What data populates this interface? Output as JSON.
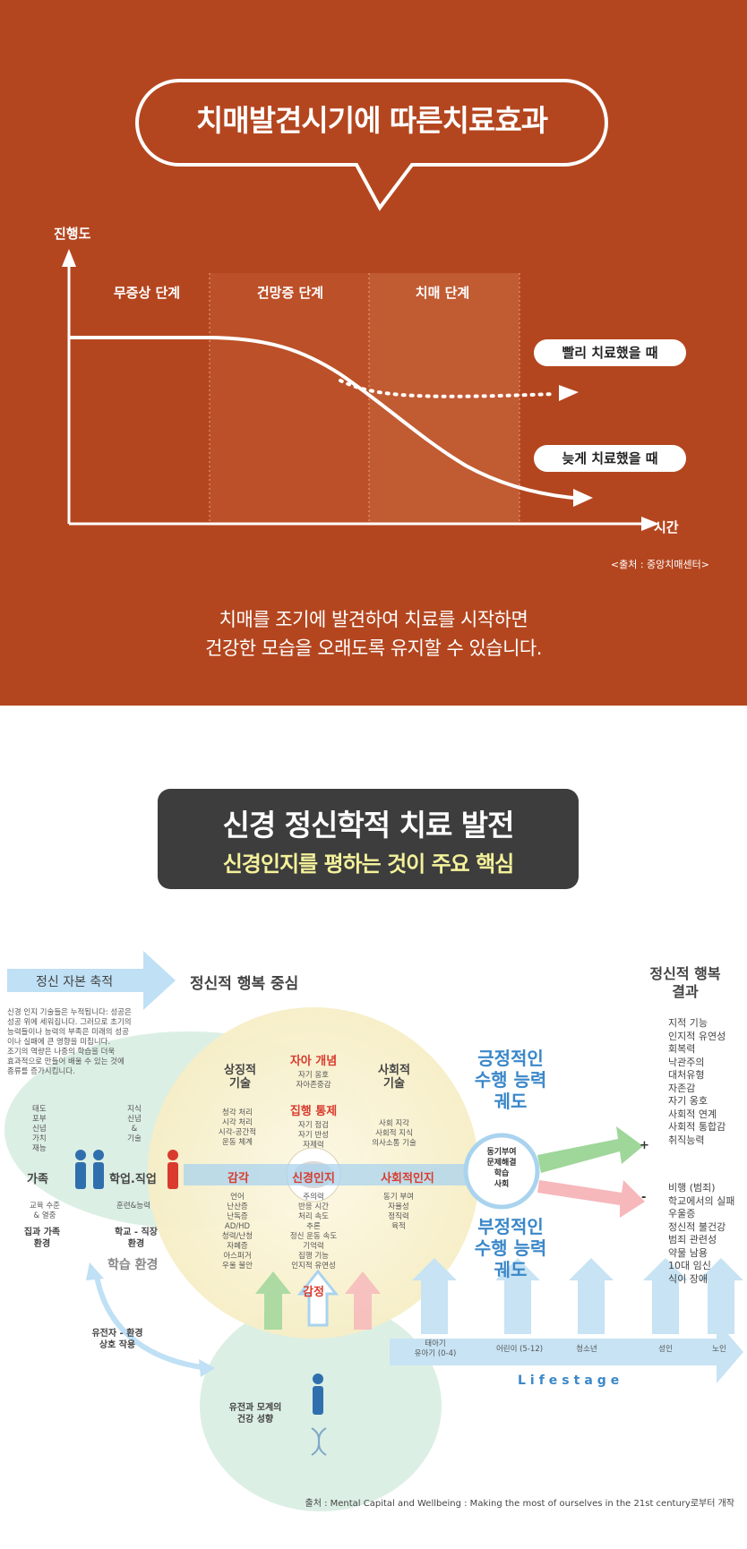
{
  "top": {
    "title": "치매발견시기에 따른치료효과",
    "y_axis": "진행도",
    "x_axis": "시간",
    "stages": [
      "무증상 단계",
      "건망증 단계",
      "치매 단계"
    ],
    "early_label": "빨리 치료했을 때",
    "late_label": "늦게 치료했을 때",
    "source": "<출처 : 중앙치매센터>",
    "caption_line1": "치매를 조기에 발견하여 치료를 시작하면",
    "caption_line2": "건강한 모습을 오래도록 유지할 수 있습니다.",
    "bg_color": "#b4461f"
  },
  "banner": {
    "line1": "신경 정신학적 치료 발전",
    "line2": "신경인지를 평하는 것이 주요 핵심",
    "line2_color": "#f4f19a"
  },
  "diagram": {
    "capital_arrow": "정신 자본 축적",
    "center_heading": "정신적 행복 중심",
    "result_heading_1": "정신적 행복",
    "result_heading_2": "결과",
    "intro_lines": [
      "신경 인지 기술들은 누적됩니다: 성공은",
      "성공 위에 세워집니다. 그러므로 초기의",
      "능력들이나 능력의 부족은 미래의 성공",
      "이나 실패에 큰 영향을 미칩니다.",
      "조기의 역량은 나중의 학습을 더욱",
      "효과적으로 만들어 배울 수 있는 것에",
      "종류를 증가시킵니다."
    ],
    "family_traits": [
      "태도",
      "포부",
      "신념",
      "가치",
      "재능"
    ],
    "family": "가족",
    "family_sub": [
      "교육 수준",
      "& 열중"
    ],
    "family_env": [
      "집과 가족",
      "환경"
    ],
    "school_traits": [
      "지식",
      "신념",
      "&",
      "기술"
    ],
    "school": "학업.직업",
    "school_sub": "훈련&능력",
    "school_env": [
      "학교 - 직장",
      "환경"
    ],
    "learning_env": "학습 환경",
    "symbolic": [
      "상징적",
      "기술"
    ],
    "social_skill": [
      "사회적",
      "기술"
    ],
    "self_concept": "자아 개념",
    "self_items": [
      "자기 옹호",
      "자아존중감"
    ],
    "exec": "집행 통제",
    "exec_items": [
      "자기 점검",
      "자기 반성",
      "자제력"
    ],
    "sym_items": [
      "청각 처리",
      "시각 처리",
      "시각-공간적",
      "운동 체계"
    ],
    "soc_items": [
      "사회 지각",
      "사회적 지식",
      "의사소통 기술"
    ],
    "sense": "감각",
    "neuro": "신경인지",
    "social_cog": "사회적인지",
    "bottom_left_items": [
      "언어",
      "난산증",
      "난독증",
      "AD/HD",
      "청력/난청",
      "자폐증",
      "아스퍼거",
      "우울 불안"
    ],
    "bottom_mid_items": [
      "주의력",
      "반응 시간",
      "처리 속도",
      "추론",
      "정신 운동 속도",
      "기억력",
      "집행 기능",
      "인지적 유연성"
    ],
    "bottom_right_items": [
      "동기 부여",
      "자율성",
      "정직력",
      "육적"
    ],
    "emotion": "감정",
    "hub_items": [
      "동기부여",
      "문제해결",
      "학습",
      "사회"
    ],
    "positive": [
      "긍정적인",
      "수행 능력",
      "궤도"
    ],
    "negative": [
      "부정적인",
      "수행 능력",
      "궤도"
    ],
    "plus": "+",
    "minus": "-",
    "positive_results": [
      "지적 기능",
      "인지적 유연성",
      "회복력",
      "낙관주의",
      "대처유형",
      "자존감",
      "자기 옹호",
      "사회적 연계",
      "사회적 통합감",
      "취직능력"
    ],
    "negative_results": [
      "비행 (범죄)",
      "학교에서의 실패",
      "우울증",
      "정신적 불건강",
      "범죄 관련성",
      "약물 남용",
      "10대 임신",
      "식이 장애"
    ],
    "gene_env": [
      "유전자 - 환경",
      "상호 작용"
    ],
    "parent_health": [
      "유전과 모계의",
      "건강 성향"
    ],
    "stages": [
      "태아기\n유아기 (0-4)",
      "어린이 (5-12)",
      "청소년",
      "성인",
      "노인"
    ],
    "lifestage": "Lifestage",
    "source": "출처 : Mental Capital and Wellbeing : Making the most of ourselves in the 21st century로부터 개작",
    "accent_blue": "#3a87c9",
    "accent_red": "#d93b2e",
    "accent_green": "#7fc27a"
  }
}
